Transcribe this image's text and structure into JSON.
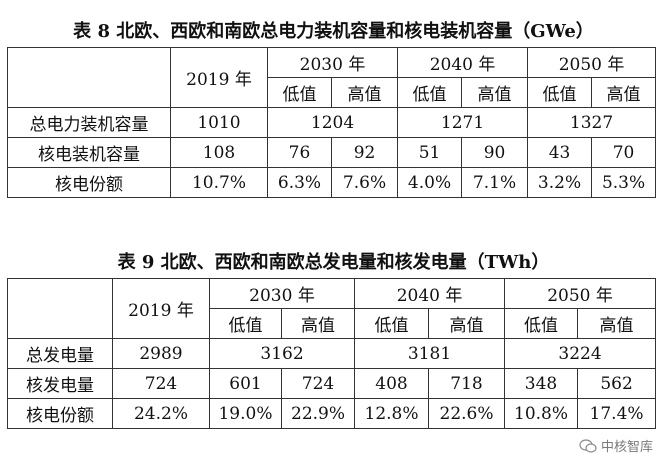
{
  "table8": {
    "title": "表 8 北欧、西欧和南欧总电力装机容量和核电装机容量（GWe）",
    "year2019": "2019 年",
    "years": [
      "2030 年",
      "2040 年",
      "2050 年"
    ],
    "low": "低值",
    "high": "高值",
    "rows": [
      {
        "label": "总电力装机容量",
        "v2019": "1010",
        "v2030": "1204",
        "v2040": "1271",
        "v2050": "1327"
      },
      {
        "label": "核电装机容量",
        "v2019": "108",
        "cells": [
          "76",
          "92",
          "51",
          "90",
          "43",
          "70"
        ]
      },
      {
        "label": "核电份额",
        "v2019": "10.7%",
        "cells": [
          "6.3%",
          "7.6%",
          "4.0%",
          "7.1%",
          "3.2%",
          "5.3%"
        ]
      }
    ]
  },
  "table9": {
    "title": "表 9 北欧、西欧和南欧总发电量和核发电量（TWh）",
    "year2019": "2019 年",
    "years": [
      "2030 年",
      "2040 年",
      "2050 年"
    ],
    "low": "低值",
    "high": "高值",
    "rows": [
      {
        "label": "总发电量",
        "v2019": "2989",
        "v2030": "3162",
        "v2040": "3181",
        "v2050": "3224"
      },
      {
        "label": "核发电量",
        "v2019": "724",
        "cells": [
          "601",
          "724",
          "408",
          "718",
          "348",
          "562"
        ]
      },
      {
        "label": "核电份额",
        "v2019": "24.2%",
        "cells": [
          "19.0%",
          "22.9%",
          "12.8%",
          "22.6%",
          "10.8%",
          "17.4%"
        ]
      }
    ]
  },
  "watermark": {
    "text": "中核智库",
    "icon": "wechat-icon"
  }
}
